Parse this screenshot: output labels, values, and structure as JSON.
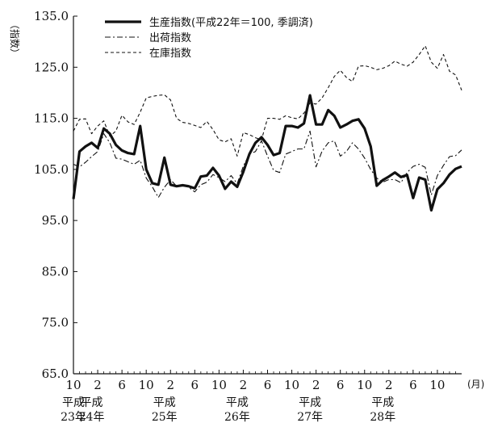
{
  "chart_data": {
    "type": "line",
    "ylabel": "（指数）",
    "ylim": [
      65.0,
      135.0
    ],
    "yticks": [
      "65.0",
      "75.0",
      "85.0",
      "95.0",
      "105.0",
      "115.0",
      "125.0",
      "135.0"
    ],
    "x_start": "平成23年10月",
    "x_end": "平成28年10月",
    "x_tick_labels": [
      "10",
      "2",
      "6",
      "10",
      "2",
      "6",
      "10",
      "2",
      "6",
      "10",
      "2",
      "6",
      "10",
      "2",
      "6",
      "10"
    ],
    "x_unit": "(月)",
    "year_labels": [
      {
        "month_index": 0,
        "line1": "平成",
        "line2": "23年"
      },
      {
        "month_index": 3,
        "line1": "平成",
        "line2": "24年"
      },
      {
        "month_index": 15,
        "line1": "平成",
        "line2": "25年"
      },
      {
        "month_index": 27,
        "line1": "平成",
        "line2": "26年"
      },
      {
        "month_index": 39,
        "line1": "平成",
        "line2": "27年"
      },
      {
        "month_index": 51,
        "line1": "平成",
        "line2": "28年"
      }
    ],
    "legend_position": "top",
    "series": [
      {
        "name": "生産指数(平成22年＝100, 季調済)",
        "style": "solid-thick",
        "color": "#111111",
        "values": [
          99.2,
          108.5,
          109.5,
          110.2,
          109.2,
          113.0,
          112.0,
          109.8,
          108.7,
          108.2,
          108.0,
          113.5,
          105.0,
          102.3,
          102.0,
          107.3,
          102.0,
          101.7,
          101.9,
          101.7,
          101.3,
          103.6,
          103.8,
          105.3,
          103.8,
          101.2,
          102.6,
          101.6,
          104.5,
          108.0,
          110.2,
          111.3,
          109.8,
          107.8,
          108.2,
          113.5,
          113.5,
          113.2,
          114.0,
          119.5,
          113.8,
          113.8,
          116.6,
          115.5,
          113.2,
          113.8,
          114.5,
          114.8,
          113.0,
          109.5,
          101.8,
          102.9,
          103.6,
          104.4,
          103.5,
          103.9,
          99.4,
          103.4,
          103.0,
          97.0,
          101.1,
          102.3,
          104.0,
          105.1,
          105.6
        ]
      },
      {
        "name": "出荷指数",
        "style": "dash-dot",
        "color": "#111111",
        "values": [
          106.0,
          105.5,
          106.4,
          107.5,
          108.5,
          112.0,
          110.2,
          107.2,
          107.0,
          106.5,
          106.0,
          106.8,
          103.3,
          101.6,
          99.5,
          101.5,
          103.0,
          101.7,
          101.8,
          101.5,
          100.6,
          102.0,
          102.5,
          104.0,
          103.4,
          102.6,
          103.8,
          102.2,
          105.6,
          108.0,
          108.5,
          110.6,
          107.6,
          104.8,
          104.4,
          108.0,
          108.5,
          109.0,
          109.0,
          112.5,
          105.5,
          108.6,
          110.2,
          110.6,
          107.6,
          108.5,
          110.2,
          109.0,
          107.2,
          105.0,
          103.3,
          102.5,
          103.0,
          103.0,
          102.4,
          104.4,
          105.6,
          106.0,
          105.4,
          100.0,
          103.8,
          105.8,
          107.5,
          107.7,
          108.8
        ]
      },
      {
        "name": "在庫指数",
        "style": "dashed",
        "color": "#111111",
        "values": [
          112.5,
          114.8,
          114.9,
          112.0,
          113.5,
          114.5,
          111.5,
          112.5,
          115.6,
          114.3,
          113.8,
          116.2,
          119.0,
          119.3,
          119.5,
          119.6,
          118.6,
          115.0,
          114.2,
          114.0,
          113.6,
          113.2,
          114.4,
          112.8,
          110.8,
          110.4,
          111.0,
          107.6,
          112.2,
          111.8,
          111.2,
          110.8,
          115.0,
          115.0,
          114.8,
          115.5,
          115.1,
          114.9,
          116.0,
          118.0,
          117.8,
          119.0,
          121.0,
          123.2,
          124.4,
          123.0,
          122.2,
          125.2,
          125.3,
          125.0,
          124.5,
          124.8,
          125.3,
          126.2,
          125.6,
          125.2,
          126.0,
          127.5,
          129.2,
          126.0,
          124.8,
          127.5,
          124.2,
          123.5,
          120.5
        ]
      }
    ]
  }
}
